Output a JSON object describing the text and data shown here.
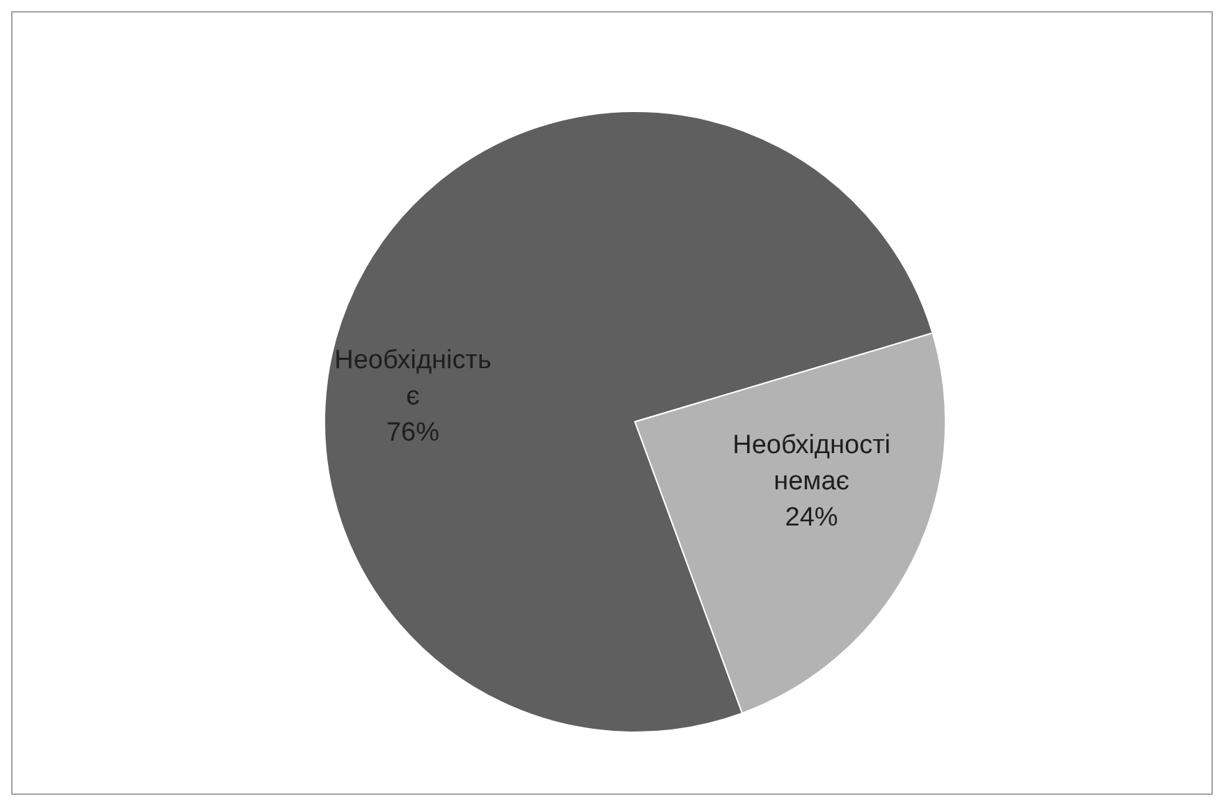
{
  "chart_data": {
    "type": "pie",
    "categories": [
      "Необхідність є",
      "Необхідності немає"
    ],
    "values": [
      76,
      24
    ],
    "colors": [
      "#5f5f5f",
      "#b3b3b3"
    ],
    "value_labels": [
      "76%",
      "24%"
    ]
  }
}
